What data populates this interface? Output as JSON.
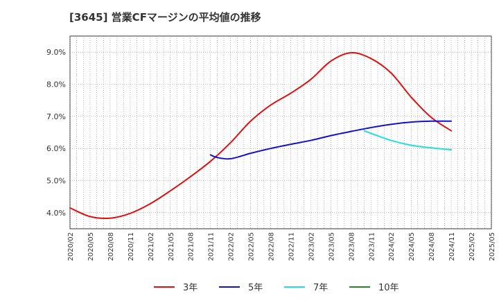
{
  "chart_data": {
    "type": "line",
    "title": "[3645]  営業CFマージンの平均値の推移",
    "xlabel": "",
    "ylabel": "",
    "ylim": [
      3.5,
      9.5
    ],
    "y_ticks": [
      "4.0%",
      "5.0%",
      "6.0%",
      "7.0%",
      "8.0%",
      "9.0%"
    ],
    "y_tick_values": [
      4.0,
      5.0,
      6.0,
      7.0,
      8.0,
      9.0
    ],
    "x_ticks": [
      "2020/02",
      "2020/05",
      "2020/08",
      "2020/11",
      "2021/02",
      "2021/05",
      "2021/08",
      "2021/11",
      "2022/02",
      "2022/05",
      "2022/08",
      "2022/11",
      "2023/02",
      "2023/05",
      "2023/08",
      "2023/11",
      "2024/02",
      "2024/05",
      "2024/08",
      "2024/11",
      "2025/02",
      "2025/05"
    ],
    "grid": true,
    "legend_position": "bottom",
    "series": [
      {
        "name": "3年",
        "color": "#dd1111",
        "x": [
          "2020/02",
          "2020/05",
          "2020/08",
          "2020/11",
          "2021/02",
          "2021/05",
          "2021/08",
          "2021/11",
          "2022/02",
          "2022/05",
          "2022/08",
          "2022/11",
          "2023/02",
          "2023/05",
          "2023/08",
          "2023/11",
          "2024/02",
          "2024/05",
          "2024/08",
          "2024/11"
        ],
        "values": [
          4.15,
          3.88,
          3.83,
          3.98,
          4.28,
          4.68,
          5.12,
          5.6,
          6.18,
          6.85,
          7.35,
          7.72,
          8.15,
          8.72,
          8.98,
          8.8,
          8.35,
          7.6,
          6.97,
          6.55
        ]
      },
      {
        "name": "5年",
        "color": "#1111cc",
        "x": [
          "2021/11",
          "2021/12",
          "2022/02",
          "2022/05",
          "2022/08",
          "2022/11",
          "2023/02",
          "2023/05",
          "2023/08",
          "2023/11",
          "2024/02",
          "2024/05",
          "2024/08",
          "2024/11"
        ],
        "values": [
          5.8,
          5.72,
          5.68,
          5.85,
          6.0,
          6.13,
          6.25,
          6.4,
          6.53,
          6.65,
          6.75,
          6.82,
          6.85,
          6.85
        ]
      },
      {
        "name": "7年",
        "color": "#22dddd",
        "x": [
          "2023/10",
          "2023/11",
          "2024/02",
          "2024/05",
          "2024/08",
          "2024/11"
        ],
        "values": [
          6.55,
          6.47,
          6.25,
          6.1,
          6.02,
          5.96
        ]
      },
      {
        "name": "10年",
        "color": "#228822",
        "x": [],
        "values": []
      }
    ]
  }
}
